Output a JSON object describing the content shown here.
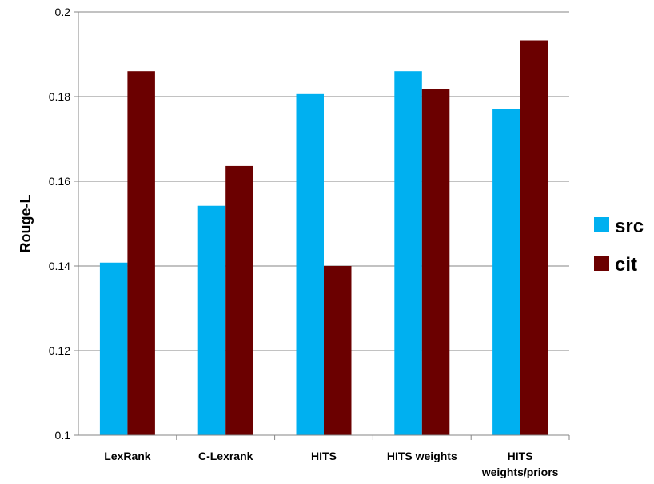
{
  "chart_data": {
    "type": "bar",
    "categories": [
      [
        "LexRank"
      ],
      [
        "C-Lexrank"
      ],
      [
        "HITS"
      ],
      [
        "HITS weights"
      ],
      [
        "HITS",
        "weights/priors"
      ]
    ],
    "series": [
      {
        "name": "src",
        "color": "#00b0f0",
        "values": [
          0.1408,
          0.1542,
          0.1806,
          0.186,
          0.1771
        ]
      },
      {
        "name": "cit",
        "color": "#6b0000",
        "values": [
          0.186,
          0.1636,
          0.14,
          0.1818,
          0.1933
        ]
      }
    ],
    "ylabel": "Rouge-L",
    "xlabel": "",
    "title": "",
    "ylim": [
      0.1,
      0.2
    ],
    "yticks": [
      "0.1",
      "0.12",
      "0.14",
      "0.16",
      "0.18",
      "0.2"
    ],
    "grid": true,
    "legend_position": "right"
  }
}
